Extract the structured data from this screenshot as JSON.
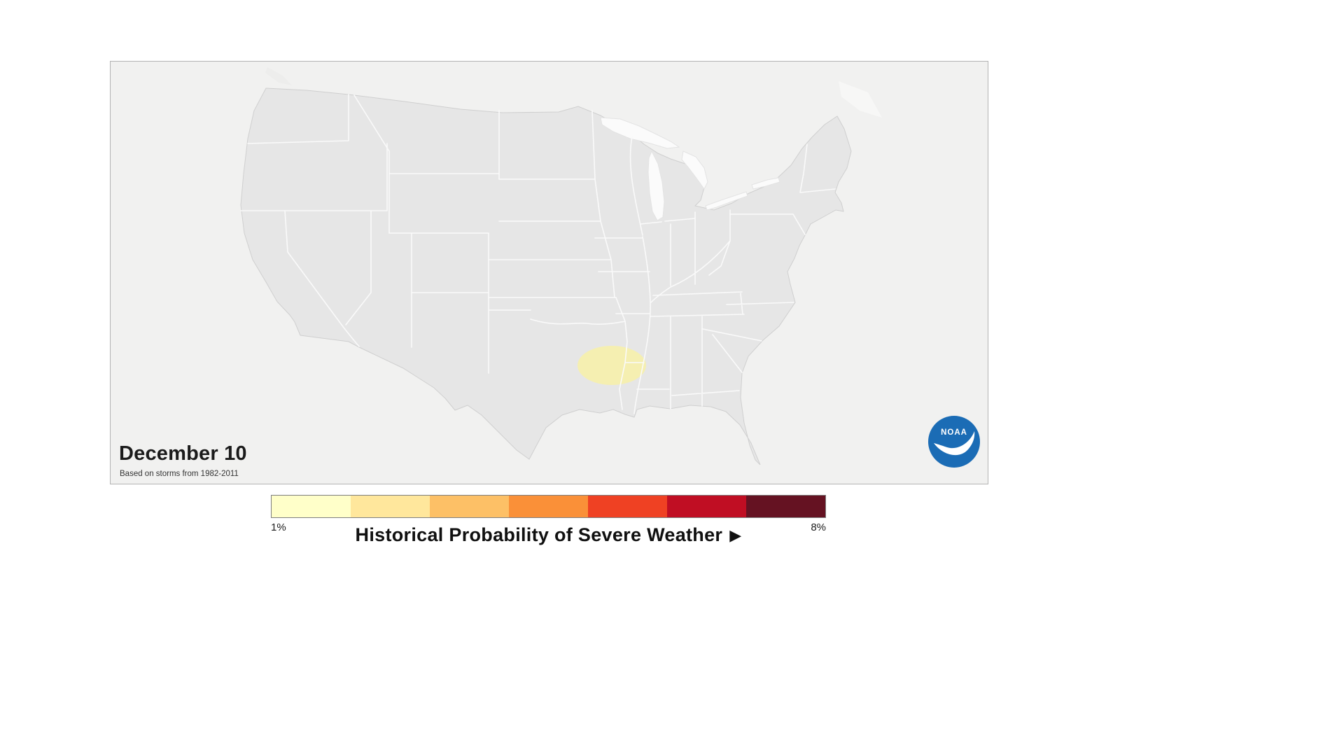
{
  "map_panel": {
    "date_label": "December 10",
    "source_note": "Based on storms from 1982-2011",
    "noaa_logo_text": "NOAA",
    "noaa_blue": "#1b6cb5",
    "highlight": {
      "color": "#f6efae",
      "region": "Lower Mississippi Valley (AR / LA / MS border area)",
      "probability": "~1%"
    }
  },
  "legend": {
    "title": "Historical Probability of Severe Weather",
    "arrow": "▶",
    "min_label": "1%",
    "max_label": "8%",
    "colors": [
      "#FFFFC9",
      "#FFE79C",
      "#FDC066",
      "#FA9038",
      "#EF4123",
      "#C00E23",
      "#651222"
    ]
  },
  "chart_data": {
    "type": "heatmap",
    "title": "Historical Probability of Severe Weather",
    "date": "December 10",
    "source_period": "Based on storms from 1982-2011",
    "scale": {
      "min_label": "1%",
      "max_label": "8%",
      "colors": [
        "#FFFFC9",
        "#FFE79C",
        "#FDC066",
        "#FA9038",
        "#EF4123",
        "#C00E23",
        "#651222"
      ]
    },
    "regions": [
      {
        "area": "Arkansas-Louisiana-Mississippi border (Lower Mississippi Valley)",
        "probability": "~1%"
      }
    ]
  }
}
